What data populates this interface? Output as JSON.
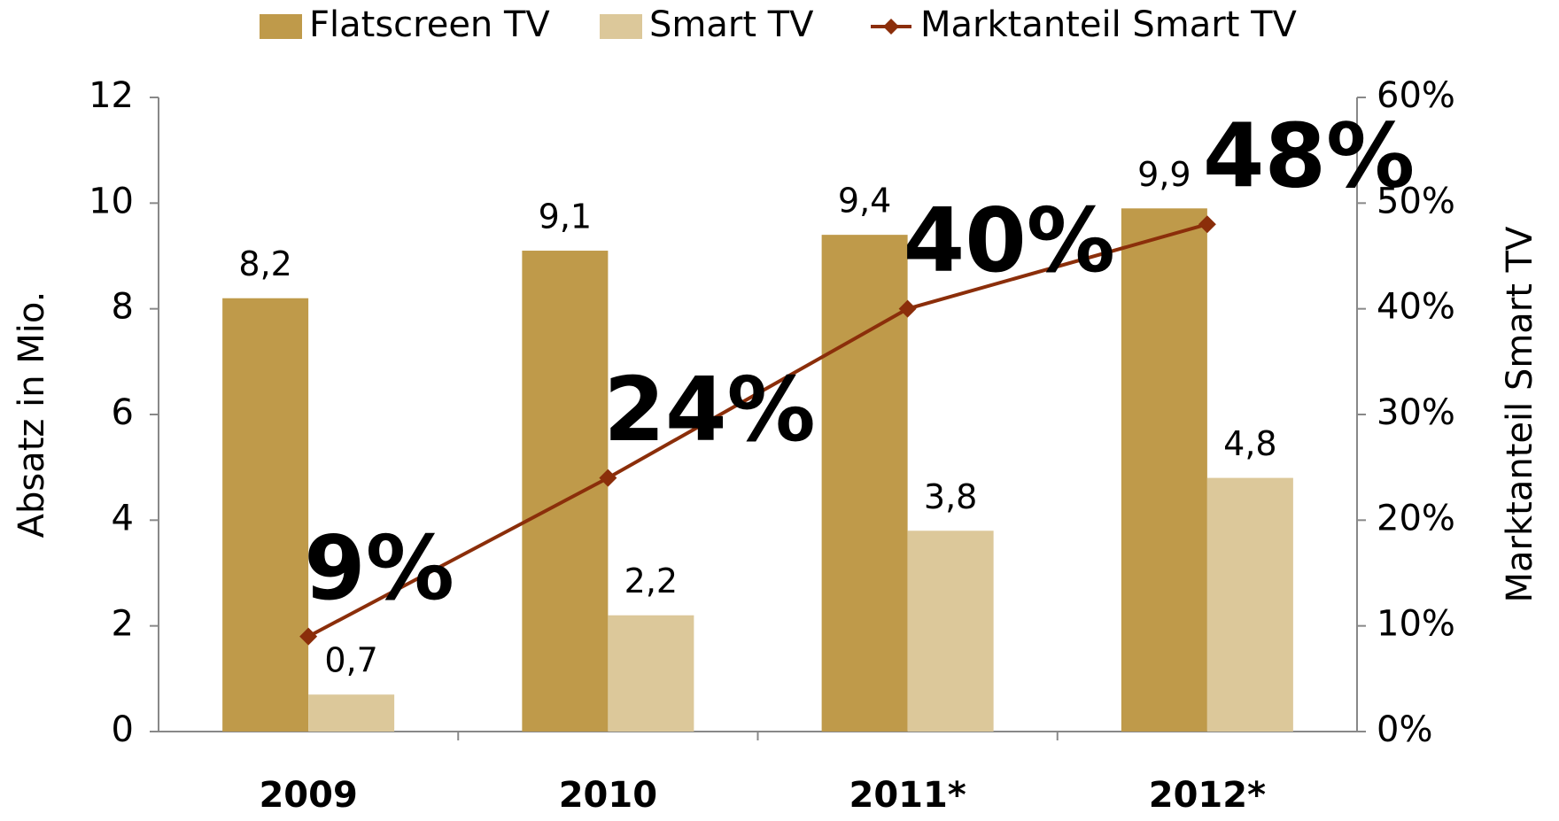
{
  "chart_data": {
    "type": "bar",
    "categories": [
      "2009",
      "2010",
      "2011*",
      "2012*"
    ],
    "series": [
      {
        "name": "Flatscreen TV",
        "color": "#bf9a4a",
        "values": [
          8.2,
          9.1,
          9.4,
          9.9
        ],
        "value_labels": [
          "8,2",
          "9,1",
          "9,4",
          "9,9"
        ]
      },
      {
        "name": "Smart TV",
        "color": "#dcc89a",
        "values": [
          0.7,
          2.2,
          3.8,
          4.8
        ],
        "value_labels": [
          "0,7",
          "2,2",
          "3,8",
          "4,8"
        ]
      },
      {
        "name": "Marktanteil Smart TV",
        "type": "line",
        "axis": "y2",
        "color": "#8b2e0a",
        "values": [
          9,
          24,
          40,
          48
        ],
        "value_labels": [
          "9%",
          "24%",
          "40%",
          "48%"
        ]
      }
    ],
    "ylabel": "Absatz in Mio.",
    "y2label": "Marktanteil Smart TV",
    "ylim": [
      0,
      12
    ],
    "yticks": [
      0,
      2,
      4,
      6,
      8,
      10,
      12
    ],
    "y2lim": [
      0,
      60
    ],
    "y2ticks": [
      {
        "value": 0,
        "label": "0%"
      },
      {
        "value": 10,
        "label": "10%"
      },
      {
        "value": 20,
        "label": "20%"
      },
      {
        "value": 30,
        "label": "30%"
      },
      {
        "value": 40,
        "label": "40%"
      },
      {
        "value": 50,
        "label": "50%"
      },
      {
        "value": 60,
        "label": "60%"
      }
    ],
    "legend": "top"
  }
}
